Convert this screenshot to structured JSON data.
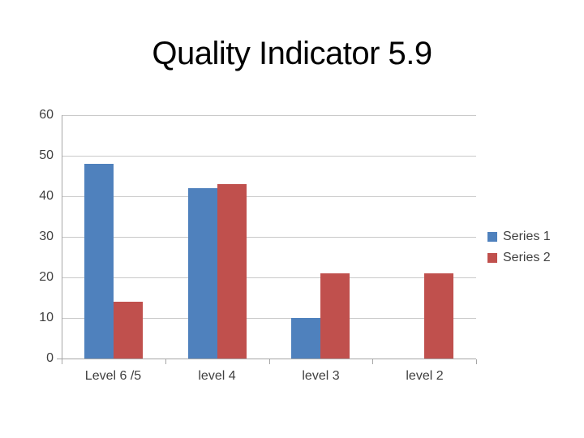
{
  "slide": {
    "title": "Quality Indicator 5.9",
    "background": "#ffffff"
  },
  "chart_data": {
    "type": "bar",
    "title": "Quality Indicator 5.9",
    "categories": [
      "Level 6 /5",
      "level 4",
      "level 3",
      "level 2"
    ],
    "series": [
      {
        "name": "Series 1",
        "color": "#4f81bd",
        "values": [
          48,
          42,
          10,
          0
        ]
      },
      {
        "name": "Series 2",
        "color": "#c0504d",
        "values": [
          14,
          43,
          21,
          21
        ]
      }
    ],
    "xlabel": "",
    "ylabel": "",
    "ylim": [
      0,
      60
    ],
    "yticks": [
      0,
      10,
      20,
      30,
      40,
      50,
      60
    ],
    "grid": true,
    "legend_position": "right",
    "colors": {
      "gridline": "#c9c9c9",
      "axis": "#a6a6a6",
      "tick_text": "#3f3f3f",
      "legend_text": "#404040",
      "title_text": "#000000"
    }
  }
}
